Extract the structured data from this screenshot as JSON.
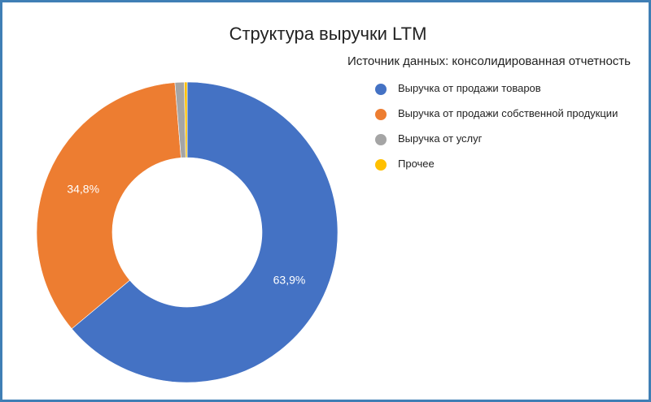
{
  "chart_data": {
    "type": "pie",
    "title": "Структура выручки LTM",
    "subtitle": "Источник данных: консолидированная отчетность",
    "legend_position": "right",
    "donut": true,
    "categories": [
      "Выручка от продажи товаров",
      "Выручка от продажи собственной продукции",
      "Выручка от услуг",
      "Прочее"
    ],
    "values": [
      63.9,
      34.8,
      1.0,
      0.3
    ],
    "data_labels": [
      "63,9%",
      "34,8%",
      "",
      ""
    ],
    "colors": [
      "#4472c4",
      "#ed7d31",
      "#a5a5a5",
      "#ffc000"
    ]
  }
}
